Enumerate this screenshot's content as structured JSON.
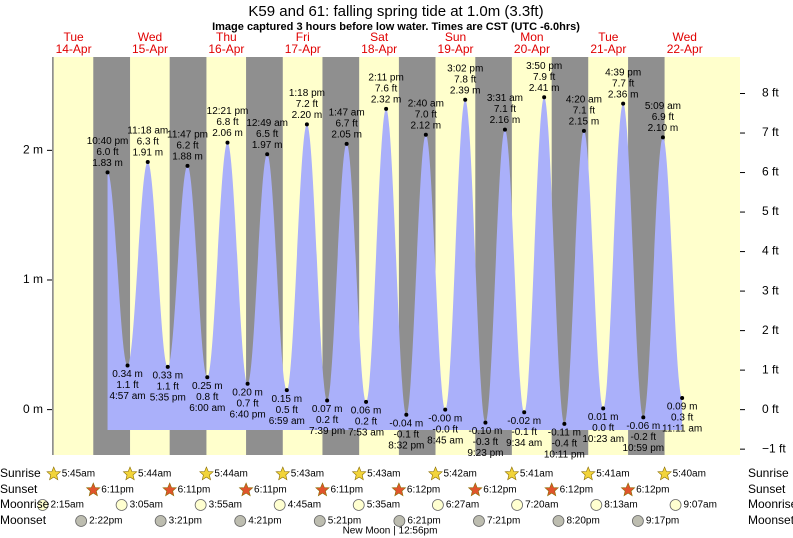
{
  "chart_data": {
    "type": "tide",
    "title": "K59 and 61: falling  spring tide at 1.0m (3.3ft)",
    "subtitle": "Image captured 3 hours before low water. Times are CST (UTC -6.0hrs)",
    "days": [
      "Tue",
      "Wed",
      "Thu",
      "Fri",
      "Sat",
      "Sun",
      "Mon",
      "Tue",
      "Wed"
    ],
    "dates": [
      "14-Apr",
      "15-Apr",
      "16-Apr",
      "17-Apr",
      "18-Apr",
      "19-Apr",
      "20-Apr",
      "21-Apr",
      "22-Apr"
    ],
    "ylim": [
      -0.35,
      2.72
    ],
    "yticks": [
      {
        "value": 0,
        "label": "0 m"
      },
      {
        "value": 1,
        "label": "1 m"
      },
      {
        "value": 2,
        "label": "2 m"
      }
    ],
    "y2lim": [
      -1.148,
      8.924
    ],
    "y2ticks": [
      {
        "value": -1,
        "label": "−1 ft"
      },
      {
        "value": 0,
        "label": "0 ft"
      },
      {
        "value": 1,
        "label": "1 ft"
      },
      {
        "value": 2,
        "label": "2 ft"
      },
      {
        "value": 3,
        "label": "3 ft"
      },
      {
        "value": 4,
        "label": "4 ft"
      },
      {
        "value": 5,
        "label": "5 ft"
      },
      {
        "value": 6,
        "label": "6 ft"
      },
      {
        "value": 7,
        "label": "7 ft"
      },
      {
        "value": 8,
        "label": "8 ft"
      }
    ],
    "color": "#aab0fa",
    "tides": {
      "dates": [
        "14-Apr",
        "15-Apr",
        "15-Apr",
        "15-Apr",
        "15-Apr",
        "16-Apr",
        "16-Apr",
        "16-Apr",
        "17-Apr",
        "17-Apr",
        "17-Apr",
        "17-Apr",
        "18-Apr",
        "18-Apr",
        "18-Apr",
        "18-Apr",
        "19-Apr",
        "19-Apr",
        "19-Apr",
        "19-Apr",
        "20-Apr",
        "20-Apr",
        "20-Apr",
        "20-Apr",
        "21-Apr",
        "21-Apr",
        "21-Apr",
        "21-Apr",
        "22-Apr",
        "22-Apr"
      ],
      "times": [
        "10:40 pm",
        "4:57 am",
        "11:18 am",
        "5:35 pm",
        "11:47 pm",
        "6:00 am",
        "12:21 pm",
        "6:40 pm",
        "12:49 am",
        "6:59 am",
        "1:18 pm",
        "7:39 pm",
        "1:47 am",
        "7:53 am",
        "2:11 pm",
        "8:32 pm",
        "2:40 am",
        "8:45 am",
        "3:02 pm",
        "9:23 pm",
        "3:31 am",
        "9:34 am",
        "3:50 pm",
        "10:11 pm",
        "4:20 am",
        "10:23 am",
        "4:39 pm",
        "10:59 pm",
        "5:09 am",
        "11:11 am"
      ],
      "values": [
        1.83,
        0.34,
        1.91,
        0.33,
        1.88,
        0.25,
        2.06,
        0.2,
        1.97,
        0.15,
        2.2,
        0.07,
        2.05,
        0.06,
        2.32,
        -0.04,
        2.12,
        -0.0,
        2.39,
        -0.1,
        2.16,
        -0.02,
        2.41,
        -0.11,
        2.15,
        0.01,
        2.36,
        -0.06,
        2.1,
        0.09
      ],
      "value_labels": [
        "1.83 m",
        "0.34 m",
        "1.91 m",
        "0.33 m",
        "1.88 m",
        "0.25 m",
        "2.06 m",
        "0.20 m",
        "1.97 m",
        "0.15 m",
        "2.20 m",
        "0.07 m",
        "2.05 m",
        "0.06 m",
        "2.32 m",
        "-0.04 m",
        "2.12 m",
        "-0.00 m",
        "2.39 m",
        "-0.10 m",
        "2.16 m",
        "-0.02 m",
        "2.41 m",
        "-0.11 m",
        "2.15 m",
        "0.01 m",
        "2.36 m",
        "-0.06 m",
        "2.10 m",
        "0.09 m"
      ],
      "ft_labels": [
        "6.0 ft",
        "1.1 ft",
        "6.3 ft",
        "1.1 ft",
        "6.2 ft",
        "0.8 ft",
        "6.8 ft",
        "0.7 ft",
        "6.5 ft",
        "0.5 ft",
        "7.2 ft",
        "0.2 ft",
        "6.7 ft",
        "0.2 ft",
        "7.6 ft",
        "-0.1 ft",
        "7.0 ft",
        "-0.0 ft",
        "7.8 ft",
        "-0.3 ft",
        "7.1 ft",
        "-0.1 ft",
        "7.9 ft",
        "-0.4 ft",
        "7.1 ft",
        "0.0 ft",
        "7.7 ft",
        "-0.2 ft",
        "6.9 ft",
        "0.3 ft"
      ]
    },
    "events": [
      {
        "label": "Sunrise",
        "icon": "sun",
        "color": "#f2d43a",
        "dates": [
          "14-Apr",
          "15-Apr",
          "16-Apr",
          "17-Apr",
          "18-Apr",
          "19-Apr",
          "20-Apr",
          "21-Apr",
          "22-Apr"
        ],
        "times": [
          "5:45am",
          "5:44am",
          "5:44am",
          "5:43am",
          "5:43am",
          "5:42am",
          "5:41am",
          "5:41am",
          "5:40am"
        ]
      },
      {
        "label": "Sunset",
        "icon": "sun",
        "color": "#e0542c",
        "dates": [
          "14-Apr",
          "15-Apr",
          "16-Apr",
          "17-Apr",
          "18-Apr",
          "19-Apr",
          "20-Apr",
          "21-Apr"
        ],
        "times": [
          "6:11pm",
          "6:11pm",
          "6:11pm",
          "6:11pm",
          "6:12pm",
          "6:12pm",
          "6:12pm",
          "6:12pm"
        ]
      },
      {
        "label": "Moonrise",
        "icon": "moon",
        "color": "#ffffd0",
        "dates": [
          "14-Apr",
          "15-Apr",
          "16-Apr",
          "17-Apr",
          "18-Apr",
          "19-Apr",
          "20-Apr",
          "21-Apr",
          "22-Apr"
        ],
        "times": [
          "2:15am",
          "3:05am",
          "3:55am",
          "4:45am",
          "5:35am",
          "6:27am",
          "7:20am",
          "8:13am",
          "9:07am"
        ]
      },
      {
        "label": "Moonset",
        "icon": "moon",
        "color": "#bdbdb0",
        "dates": [
          "14-Apr",
          "15-Apr",
          "16-Apr",
          "17-Apr",
          "18-Apr",
          "19-Apr",
          "20-Apr",
          "21-Apr"
        ],
        "times": [
          "2:22pm",
          "3:21pm",
          "4:21pm",
          "5:21pm",
          "6:21pm",
          "7:21pm",
          "8:20pm",
          "9:17pm"
        ]
      }
    ],
    "moon_phase": "New Moon | 12:56pm"
  }
}
